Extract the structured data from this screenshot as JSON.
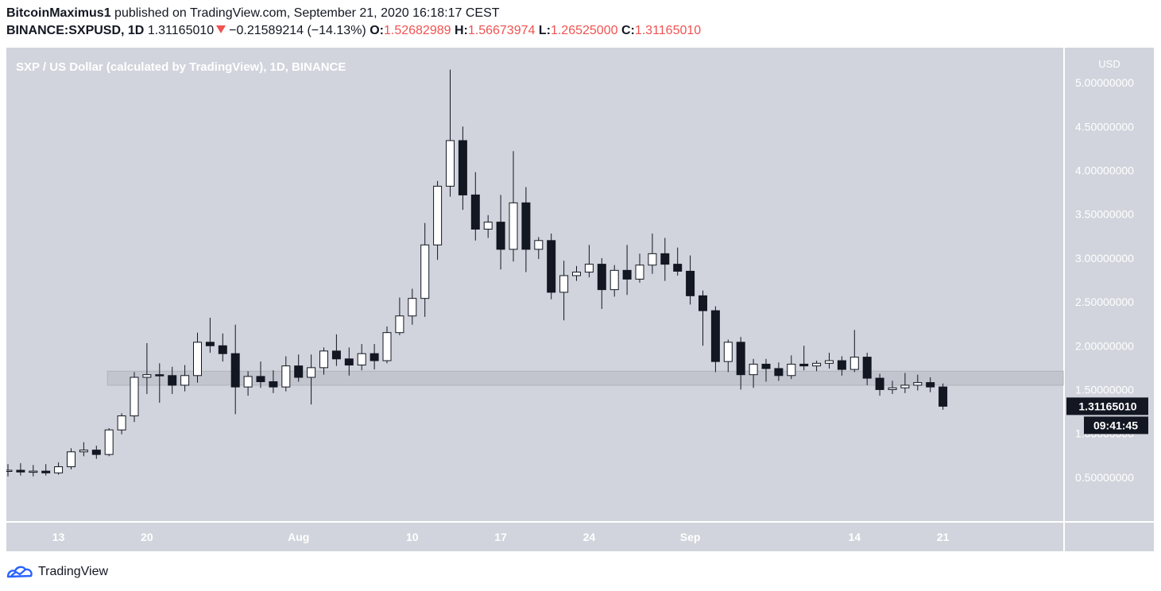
{
  "header": {
    "author": "BitcoinMaximus1",
    "published_text": "published on TradingView.com, September 21, 2020 16:18:17 CEST",
    "symbol": "BINANCE:SXPUSD, 1D",
    "last": "1.31165010",
    "change": "−0.21589214 (−14.13%)",
    "o_label": "O:",
    "o_value": "1.52682989",
    "h_label": "H:",
    "h_value": "1.56673974",
    "l_label": "L:",
    "l_value": "1.26525000",
    "c_label": "C:",
    "c_value": "1.31165010"
  },
  "footer": {
    "brand": "TradingView"
  },
  "colors": {
    "background": "#d1d4dc",
    "axis_background": "#d1d4dc",
    "bull_body": "#ffffff",
    "bear_body": "#131722",
    "wick": "#131722",
    "zone": "#c2c5cd",
    "change_down": "#ef5350",
    "price_label_bg": "#131722",
    "price_label_text": "#ffffff"
  },
  "chart_data": {
    "type": "candlestick",
    "title": "SXP / US Dollar (calculated by TradingView), 1D, BINANCE",
    "y_axis_unit": "USD",
    "ylim": [
      0.0,
      5.4
    ],
    "y_ticks": [
      {
        "value": 0.5,
        "label": "0.50000000"
      },
      {
        "value": 1.0,
        "label": "1.00000000"
      },
      {
        "value": 1.5,
        "label": "1.50000000"
      },
      {
        "value": 2.0,
        "label": "2.00000000"
      },
      {
        "value": 2.5,
        "label": "2.50000000"
      },
      {
        "value": 3.0,
        "label": "3.00000000"
      },
      {
        "value": 3.5,
        "label": "3.50000000"
      },
      {
        "value": 4.0,
        "label": "4.00000000"
      },
      {
        "value": 4.5,
        "label": "4.50000000"
      },
      {
        "value": 5.0,
        "label": "5.00000000"
      }
    ],
    "x_ticks": [
      {
        "index": 4,
        "label": "13"
      },
      {
        "index": 11,
        "label": "20"
      },
      {
        "index": 23,
        "label": "Aug"
      },
      {
        "index": 32,
        "label": "10"
      },
      {
        "index": 39,
        "label": "17"
      },
      {
        "index": 46,
        "label": "24"
      },
      {
        "index": 54,
        "label": "Sep"
      },
      {
        "index": 67,
        "label": "14"
      },
      {
        "index": 74,
        "label": "21"
      }
    ],
    "current_price_label": "1.31165010",
    "countdown_label": "09:41:45",
    "zone": {
      "low": 1.55,
      "high": 1.71,
      "start_index": 8
    },
    "candles": [
      {
        "o": 0.57,
        "h": 0.65,
        "l": 0.51,
        "c": 0.58
      },
      {
        "o": 0.58,
        "h": 0.66,
        "l": 0.52,
        "c": 0.56
      },
      {
        "o": 0.56,
        "h": 0.64,
        "l": 0.51,
        "c": 0.57
      },
      {
        "o": 0.57,
        "h": 0.65,
        "l": 0.52,
        "c": 0.55
      },
      {
        "o": 0.55,
        "h": 0.67,
        "l": 0.53,
        "c": 0.62
      },
      {
        "o": 0.62,
        "h": 0.83,
        "l": 0.59,
        "c": 0.79
      },
      {
        "o": 0.79,
        "h": 0.9,
        "l": 0.74,
        "c": 0.81
      },
      {
        "o": 0.81,
        "h": 0.86,
        "l": 0.71,
        "c": 0.76
      },
      {
        "o": 0.76,
        "h": 1.06,
        "l": 0.74,
        "c": 1.04
      },
      {
        "o": 1.04,
        "h": 1.23,
        "l": 0.99,
        "c": 1.2
      },
      {
        "o": 1.2,
        "h": 1.7,
        "l": 1.13,
        "c": 1.64
      },
      {
        "o": 1.64,
        "h": 2.03,
        "l": 1.45,
        "c": 1.67
      },
      {
        "o": 1.67,
        "h": 1.8,
        "l": 1.35,
        "c": 1.66
      },
      {
        "o": 1.66,
        "h": 1.76,
        "l": 1.45,
        "c": 1.55
      },
      {
        "o": 1.55,
        "h": 1.78,
        "l": 1.48,
        "c": 1.66
      },
      {
        "o": 1.66,
        "h": 2.15,
        "l": 1.58,
        "c": 2.04
      },
      {
        "o": 2.04,
        "h": 2.32,
        "l": 1.92,
        "c": 2.0
      },
      {
        "o": 2.0,
        "h": 2.14,
        "l": 1.82,
        "c": 1.91
      },
      {
        "o": 1.91,
        "h": 2.24,
        "l": 1.22,
        "c": 1.53
      },
      {
        "o": 1.53,
        "h": 1.71,
        "l": 1.43,
        "c": 1.65
      },
      {
        "o": 1.65,
        "h": 1.82,
        "l": 1.52,
        "c": 1.59
      },
      {
        "o": 1.59,
        "h": 1.72,
        "l": 1.46,
        "c": 1.53
      },
      {
        "o": 1.53,
        "h": 1.88,
        "l": 1.48,
        "c": 1.77
      },
      {
        "o": 1.77,
        "h": 1.9,
        "l": 1.59,
        "c": 1.64
      },
      {
        "o": 1.64,
        "h": 1.9,
        "l": 1.33,
        "c": 1.75
      },
      {
        "o": 1.75,
        "h": 1.98,
        "l": 1.67,
        "c": 1.94
      },
      {
        "o": 1.94,
        "h": 2.13,
        "l": 1.77,
        "c": 1.85
      },
      {
        "o": 1.85,
        "h": 1.98,
        "l": 1.66,
        "c": 1.78
      },
      {
        "o": 1.78,
        "h": 2.02,
        "l": 1.72,
        "c": 1.91
      },
      {
        "o": 1.91,
        "h": 2.02,
        "l": 1.73,
        "c": 1.83
      },
      {
        "o": 1.83,
        "h": 2.22,
        "l": 1.8,
        "c": 2.15
      },
      {
        "o": 2.15,
        "h": 2.55,
        "l": 2.12,
        "c": 2.34
      },
      {
        "o": 2.34,
        "h": 2.65,
        "l": 2.24,
        "c": 2.54
      },
      {
        "o": 2.54,
        "h": 3.4,
        "l": 2.33,
        "c": 3.15
      },
      {
        "o": 3.15,
        "h": 3.88,
        "l": 2.98,
        "c": 3.82
      },
      {
        "o": 3.82,
        "h": 5.15,
        "l": 3.7,
        "c": 4.34
      },
      {
        "o": 4.34,
        "h": 4.5,
        "l": 3.55,
        "c": 3.72
      },
      {
        "o": 3.72,
        "h": 3.98,
        "l": 3.2,
        "c": 3.33
      },
      {
        "o": 3.33,
        "h": 3.49,
        "l": 3.23,
        "c": 3.41
      },
      {
        "o": 3.41,
        "h": 3.72,
        "l": 2.87,
        "c": 3.1
      },
      {
        "o": 3.1,
        "h": 4.22,
        "l": 2.96,
        "c": 3.63
      },
      {
        "o": 3.63,
        "h": 3.81,
        "l": 2.84,
        "c": 3.1
      },
      {
        "o": 3.1,
        "h": 3.24,
        "l": 2.99,
        "c": 3.2
      },
      {
        "o": 3.2,
        "h": 3.28,
        "l": 2.53,
        "c": 2.61
      },
      {
        "o": 2.61,
        "h": 2.97,
        "l": 2.29,
        "c": 2.8
      },
      {
        "o": 2.8,
        "h": 2.91,
        "l": 2.74,
        "c": 2.84
      },
      {
        "o": 2.84,
        "h": 3.15,
        "l": 2.78,
        "c": 2.93
      },
      {
        "o": 2.93,
        "h": 3.0,
        "l": 2.42,
        "c": 2.64
      },
      {
        "o": 2.64,
        "h": 2.92,
        "l": 2.56,
        "c": 2.86
      },
      {
        "o": 2.86,
        "h": 3.15,
        "l": 2.58,
        "c": 2.76
      },
      {
        "o": 2.76,
        "h": 3.05,
        "l": 2.72,
        "c": 2.92
      },
      {
        "o": 2.92,
        "h": 3.28,
        "l": 2.82,
        "c": 3.05
      },
      {
        "o": 3.05,
        "h": 3.23,
        "l": 2.74,
        "c": 2.93
      },
      {
        "o": 2.93,
        "h": 3.12,
        "l": 2.8,
        "c": 2.85
      },
      {
        "o": 2.85,
        "h": 3.03,
        "l": 2.47,
        "c": 2.57
      },
      {
        "o": 2.57,
        "h": 2.63,
        "l": 2.0,
        "c": 2.4
      },
      {
        "o": 2.4,
        "h": 2.45,
        "l": 1.7,
        "c": 1.82
      },
      {
        "o": 1.82,
        "h": 2.07,
        "l": 1.7,
        "c": 2.04
      },
      {
        "o": 2.04,
        "h": 2.1,
        "l": 1.5,
        "c": 1.67
      },
      {
        "o": 1.67,
        "h": 1.85,
        "l": 1.52,
        "c": 1.79
      },
      {
        "o": 1.79,
        "h": 1.85,
        "l": 1.59,
        "c": 1.74
      },
      {
        "o": 1.74,
        "h": 1.81,
        "l": 1.6,
        "c": 1.66
      },
      {
        "o": 1.66,
        "h": 1.89,
        "l": 1.62,
        "c": 1.79
      },
      {
        "o": 1.79,
        "h": 2.0,
        "l": 1.72,
        "c": 1.77
      },
      {
        "o": 1.77,
        "h": 1.83,
        "l": 1.71,
        "c": 1.8
      },
      {
        "o": 1.8,
        "h": 1.92,
        "l": 1.74,
        "c": 1.83
      },
      {
        "o": 1.83,
        "h": 1.88,
        "l": 1.66,
        "c": 1.73
      },
      {
        "o": 1.73,
        "h": 2.18,
        "l": 1.7,
        "c": 1.87
      },
      {
        "o": 1.87,
        "h": 1.92,
        "l": 1.55,
        "c": 1.63
      },
      {
        "o": 1.63,
        "h": 1.68,
        "l": 1.43,
        "c": 1.5
      },
      {
        "o": 1.5,
        "h": 1.6,
        "l": 1.45,
        "c": 1.52
      },
      {
        "o": 1.52,
        "h": 1.69,
        "l": 1.46,
        "c": 1.55
      },
      {
        "o": 1.55,
        "h": 1.67,
        "l": 1.49,
        "c": 1.58
      },
      {
        "o": 1.58,
        "h": 1.64,
        "l": 1.47,
        "c": 1.53
      },
      {
        "o": 1.53,
        "h": 1.57,
        "l": 1.27,
        "c": 1.31
      }
    ]
  }
}
